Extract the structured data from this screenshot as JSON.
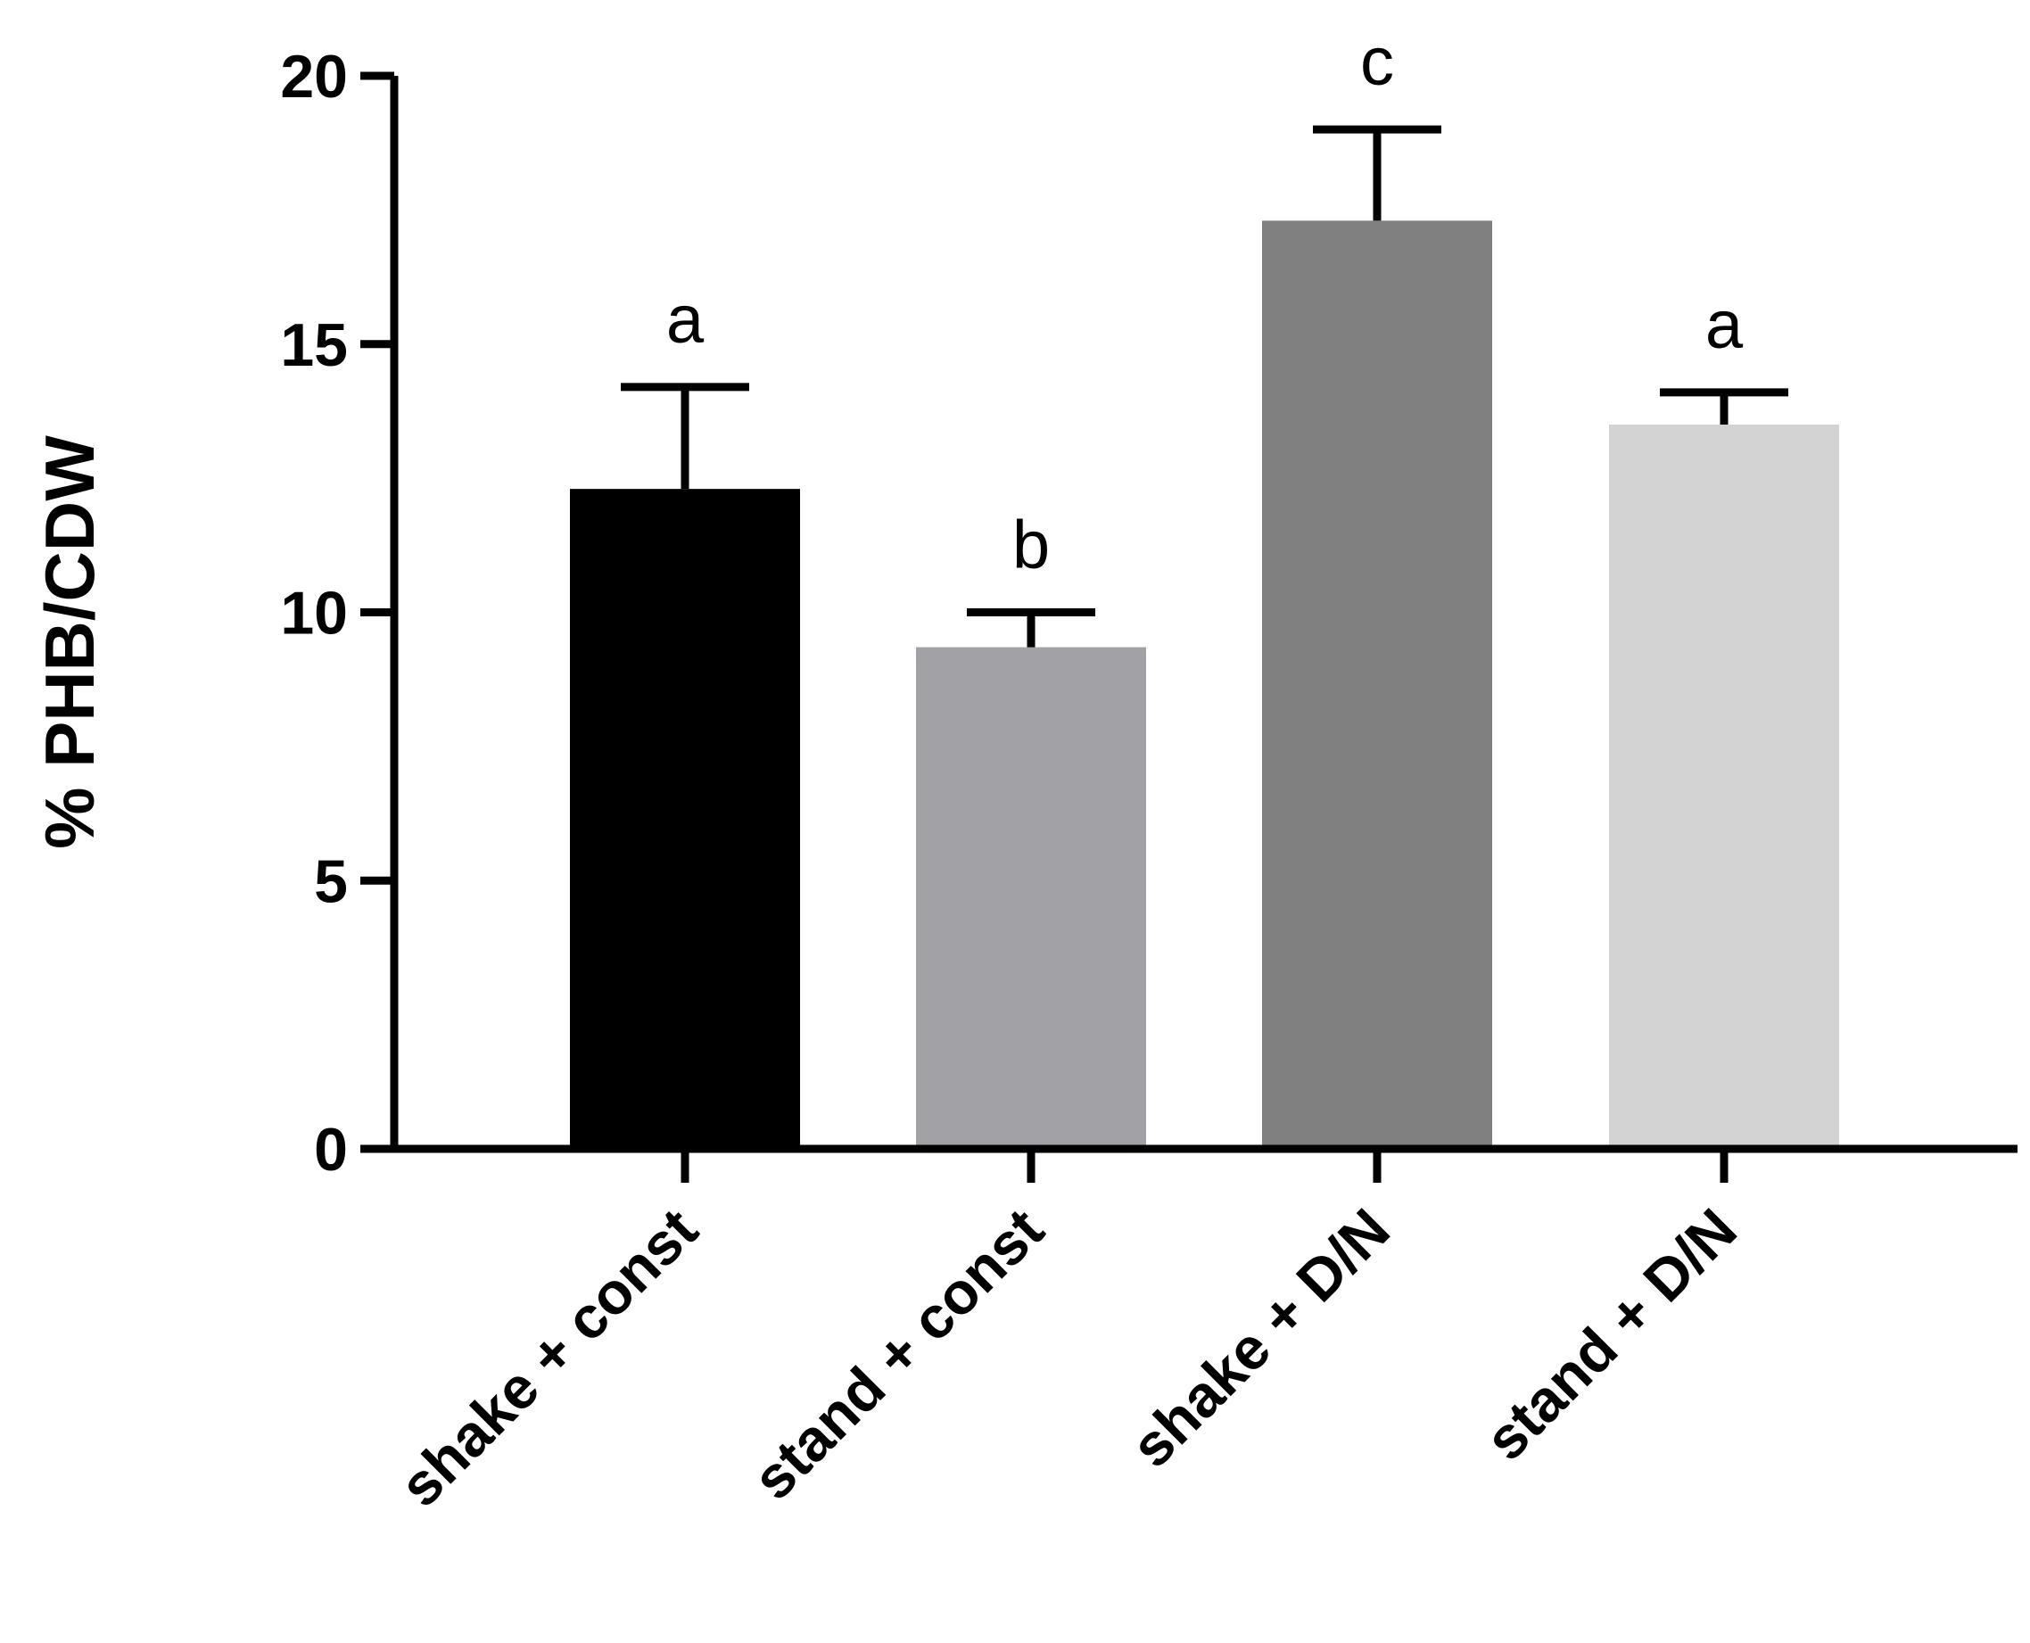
{
  "chart_data": {
    "type": "bar",
    "title": "",
    "xlabel": "",
    "ylabel": "% PHB/CDW",
    "ylim": [
      0,
      20
    ],
    "yticks": [
      0,
      5,
      10,
      15,
      20
    ],
    "grid": false,
    "categories": [
      "shake + const",
      "stand + const",
      "shake + D/N",
      "stand + D/N"
    ],
    "values": [
      12.3,
      9.35,
      17.3,
      13.5
    ],
    "error_upper": [
      14.2,
      10.0,
      19.0,
      14.1
    ],
    "significance_labels": [
      "a",
      "b",
      "c",
      "a"
    ],
    "colors": [
      "#000000",
      "#a2a1a6",
      "#808080",
      "#d3d3d3"
    ]
  }
}
